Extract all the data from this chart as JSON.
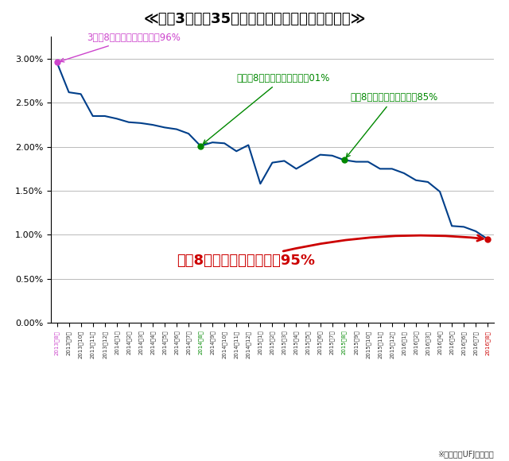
{
  "title": "≪過去3年間の35年固定金利型住宅ローンの推移≫",
  "title_color": "#000000",
  "background_color": "#ffffff",
  "line_color": "#003f8a",
  "xlabels": [
    "2013年8月",
    "2013年9月",
    "2013年10月",
    "2013年11月",
    "2013年12月",
    "2014年1月",
    "2014年2月",
    "2014年3月",
    "2014年4月",
    "2014年5月",
    "2014年6月",
    "2014年7月",
    "2014年8月",
    "2014年9月",
    "2014年10月",
    "2014年11月",
    "2014年12月",
    "2015年1月",
    "2015年2月",
    "2015年3月",
    "2015年4月",
    "2015年5月",
    "2015年6月",
    "2015年7月",
    "2015年8月",
    "2015年9月",
    "2015年10月",
    "2015年11月",
    "2015年12月",
    "2016年1月",
    "2016年2月",
    "2016年3月",
    "2016年4月",
    "2016年5月",
    "2016年6月",
    "2016年7月",
    "2016年8月"
  ],
  "values": [
    2.96,
    2.62,
    2.6,
    2.35,
    2.35,
    2.32,
    2.28,
    2.27,
    2.25,
    2.22,
    2.2,
    2.15,
    2.01,
    2.05,
    2.04,
    1.95,
    2.02,
    1.58,
    1.82,
    1.84,
    1.75,
    1.83,
    1.91,
    1.9,
    1.85,
    1.83,
    1.83,
    1.75,
    1.75,
    1.7,
    1.62,
    1.6,
    1.49,
    1.1,
    1.09,
    1.04,
    0.95
  ],
  "ylim": [
    0.0,
    3.25
  ],
  "yticks": [
    0.0,
    0.5,
    1.0,
    1.5,
    2.0,
    2.5,
    3.0
  ],
  "ytick_labels": [
    "0.00%",
    "0.50%",
    "1.00%",
    "1.50%",
    "2.00%",
    "2.50%",
    "3.00%"
  ],
  "annotation_first_color": "#cc44cc",
  "annotation_green_color": "#008800",
  "annotation_red_color": "#cc0000",
  "footer": "※三菱東京UFJ銀行の例",
  "ann1_text": "3年前8月の店頭金利：２．96%",
  "ann2_text": "一昨年8月の店頭金利：２．01%",
  "ann3_text": "昨年8月の店頭金利：１．85%",
  "ann4_text": "今年8月の店頭金利：０．95%"
}
